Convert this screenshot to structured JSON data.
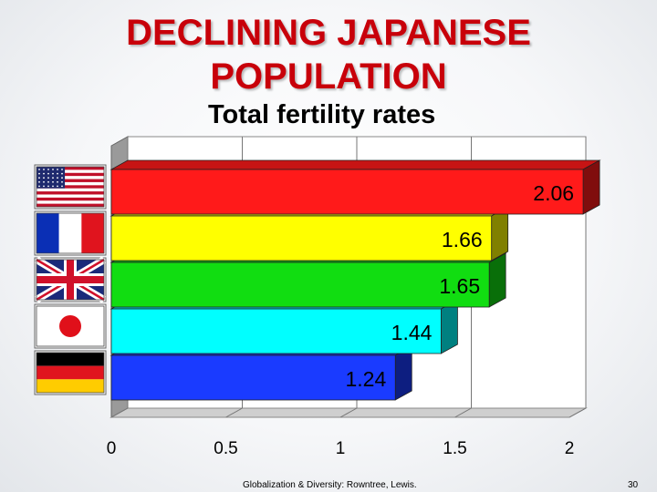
{
  "title_line1": "DECLINING JAPANESE",
  "title_line2": "POPULATION",
  "footer": {
    "credit": "Globalization & Diversity: Rowntree, Lewis.",
    "page": "30"
  },
  "chart_data": {
    "type": "bar",
    "orientation": "horizontal",
    "title": "Total fertility rates",
    "categories": [
      "United States",
      "France",
      "United Kingdom",
      "Japan",
      "Germany"
    ],
    "category_icons": [
      "us-flag-icon",
      "france-flag-icon",
      "uk-flag-icon",
      "japan-flag-icon",
      "germany-flag-icon"
    ],
    "values": [
      2.06,
      1.66,
      1.65,
      1.44,
      1.24
    ],
    "value_labels": [
      "2.06",
      "1.66",
      "1.65",
      "1.44",
      "1.24"
    ],
    "colors": [
      "#ff1a1a",
      "#ffff00",
      "#11dd11",
      "#00ffff",
      "#1a3bff"
    ],
    "xlim": [
      0,
      2
    ],
    "xticks": [
      "0",
      "0.5",
      "1",
      "1.5",
      "2"
    ],
    "grid": true,
    "legend": "none"
  }
}
